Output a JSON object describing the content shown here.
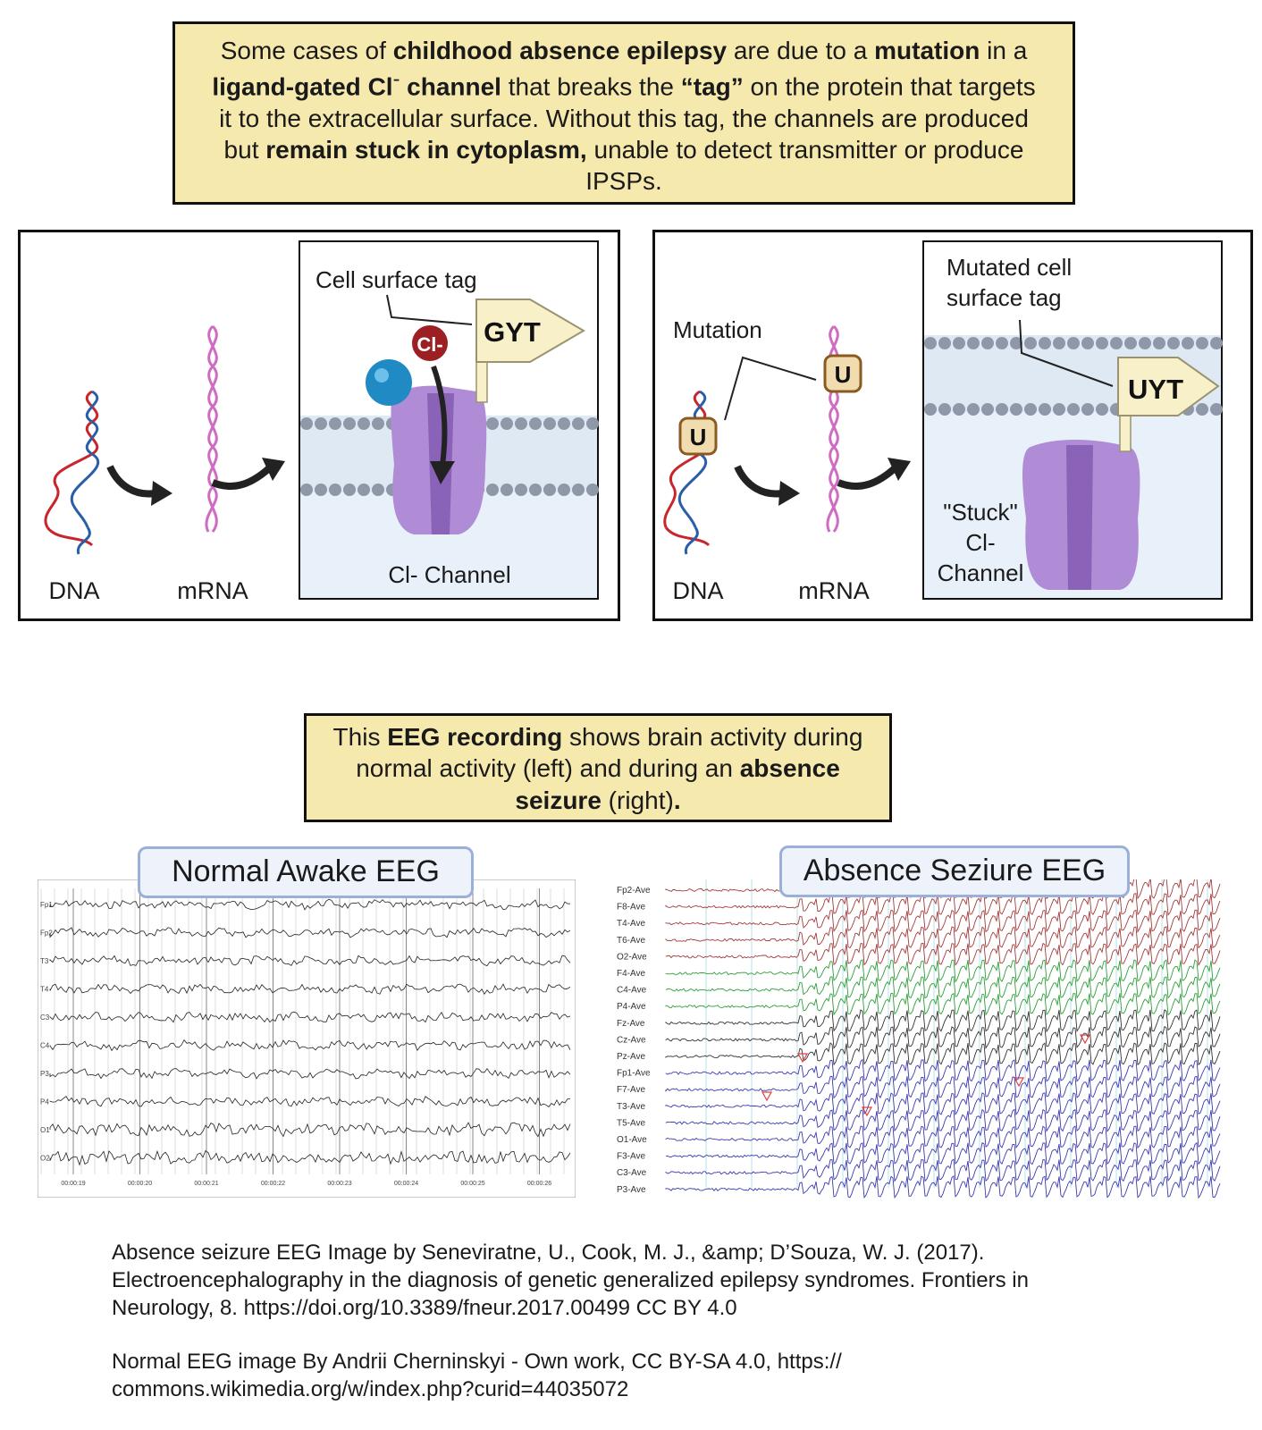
{
  "intro": {
    "segments": [
      {
        "text": "Some cases of ",
        "bold": false
      },
      {
        "text": "childhood absence epilepsy",
        "bold": true
      },
      {
        "text": " are due to a ",
        "bold": false
      },
      {
        "text": "mutation",
        "bold": true
      },
      {
        "text": " in a ",
        "bold": false
      },
      {
        "text": "ligand-gated Cl",
        "bold": true
      },
      {
        "text": "-",
        "bold": false,
        "sup": true
      },
      {
        "text": " channel",
        "bold": true
      },
      {
        "text": " that breaks the ",
        "bold": false
      },
      {
        "text": "“tag”",
        "bold": true
      },
      {
        "text": " on the protein that targets it to the extracellular surface.  Without this tag, the channels are produced but ",
        "bold": false
      },
      {
        "text": "remain stuck in cytoplasm,",
        "bold": true
      },
      {
        "text": " unable to detect transmitter or produce IPSPs.",
        "bold": false
      }
    ]
  },
  "normal_panel": {
    "dna_label": "DNA",
    "mrna_label": "mRNA",
    "tag_label": "Cell surface tag",
    "tag_code": "GYT",
    "ion_label": "Cl-",
    "channel_label": "Cl- Channel"
  },
  "mutant_panel": {
    "dna_label": "DNA",
    "mrna_label": "mRNA",
    "mutation_label": "Mutation",
    "mutation_base": "U",
    "tag_label_line1": "Mutated cell",
    "tag_label_line2": "surface tag",
    "tag_code": "UYT",
    "stuck_line1": "\"Stuck\"",
    "stuck_line2": "Cl-",
    "stuck_line3": "Channel"
  },
  "eeg_caption": {
    "segments": [
      {
        "text": "This ",
        "bold": false
      },
      {
        "text": "EEG recording",
        "bold": true
      },
      {
        "text": " shows brain activity during normal activity (left) and during an ",
        "bold": false
      },
      {
        "text": "absence seizure",
        "bold": true
      },
      {
        "text": " (right)",
        "bold": false
      },
      {
        "text": ".",
        "bold": true
      }
    ]
  },
  "normal_eeg": {
    "title": "Normal Awake EEG",
    "channels": [
      "Fp1",
      "Fp2",
      "T3",
      "T4",
      "C3",
      "C4",
      "P3",
      "P4",
      "O1",
      "O2"
    ],
    "time_labels": [
      "00:00:19",
      "00:00:20",
      "00:00:21",
      "00:00:22",
      "00:00:23",
      "00:00:24",
      "00:00:25",
      "00:00:26"
    ]
  },
  "absence_eeg": {
    "title": "Absence Seziure EEG",
    "channels": [
      "Fp2-Ave",
      "F8-Ave",
      "T4-Ave",
      "T6-Ave",
      "O2-Ave",
      "F4-Ave",
      "C4-Ave",
      "P4-Ave",
      "Fz-Ave",
      "Cz-Ave",
      "Pz-Ave",
      "Fp1-Ave",
      "F7-Ave",
      "T3-Ave",
      "T5-Ave",
      "O1-Ave",
      "F3-Ave",
      "C3-Ave",
      "P3-Ave"
    ],
    "channel_colors": [
      "#a33b3b",
      "#a33b3b",
      "#a33b3b",
      "#a33b3b",
      "#a33b3b",
      "#2e9e3a",
      "#2e9e3a",
      "#2e9e3a",
      "#333333",
      "#333333",
      "#333333",
      "#3a3ab0",
      "#3a3ab0",
      "#3a3ab0",
      "#3a3ab0",
      "#3a3ab0",
      "#3a3ab0",
      "#3a3ab0",
      "#3a3ab0"
    ]
  },
  "credits": {
    "absence": "Absence seizure EEG Image by Seneviratne, U., Cook, M. J., &amp; D’Souza, W. J. (2017).\nElectroencephalography in the diagnosis of genetic generalized epilepsy syndromes. Frontiers in\nNeurology, 8. https://doi.org/10.3389/fneur.2017.00499 CC BY 4.0",
    "normal": "Normal EEG image By Andrii Cherninskyi - Own work, CC BY-SA 4.0, https://\ncommons.wikimedia.org/w/index.php?curid=44035072"
  },
  "colors": {
    "textbox_fill": "#f6e9ad",
    "cell_bg": "#e8f0fa",
    "channel_purple": "#9a74c4",
    "tag_fill": "#f7f0c8",
    "dna_red": "#c9252c",
    "dna_blue": "#2a5ea8",
    "mrna_pink": "#cf6cc2"
  }
}
